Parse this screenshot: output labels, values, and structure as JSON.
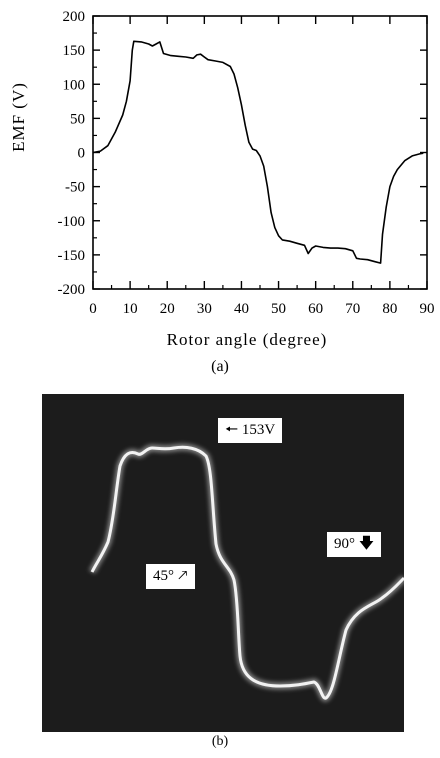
{
  "chart_data": [
    {
      "type": "line",
      "caption": "(a)",
      "xlabel": "Rotor angle (degree)",
      "ylabel": "EMF (V)",
      "xlim": [
        0,
        90
      ],
      "ylim": [
        -200,
        200
      ],
      "xticks": [
        0,
        10,
        20,
        30,
        40,
        50,
        60,
        70,
        80,
        90
      ],
      "yticks": [
        200,
        150,
        100,
        50,
        0,
        -50,
        -100,
        -150,
        -200
      ],
      "grid": false,
      "legend": "none",
      "series": [
        {
          "color": "#000000",
          "x": [
            0,
            2,
            4,
            6,
            8,
            9,
            10,
            10.6,
            11,
            13,
            15,
            16,
            17,
            18,
            19,
            21,
            23,
            25,
            27,
            28,
            29,
            30,
            31,
            33,
            35,
            37,
            38,
            39,
            40,
            41,
            42,
            43,
            44,
            45,
            46,
            47,
            48,
            49,
            50,
            51,
            53,
            55,
            57,
            58,
            59,
            60,
            62,
            64,
            66,
            68,
            70,
            71,
            72,
            74,
            76,
            77.5,
            78,
            79,
            80,
            81,
            82,
            84,
            86,
            88,
            89
          ],
          "y": [
            0,
            2,
            10,
            30,
            55,
            75,
            105,
            150,
            163,
            162,
            159,
            156,
            159,
            162,
            145,
            142,
            141,
            140,
            138,
            143,
            144,
            140,
            136,
            134,
            132,
            126,
            115,
            95,
            70,
            40,
            15,
            5,
            3,
            -5,
            -20,
            -50,
            -88,
            -110,
            -122,
            -128,
            -130,
            -133,
            -136,
            -148,
            -140,
            -137,
            -139,
            -140,
            -140,
            -141,
            -144,
            -155,
            -156,
            -157,
            -160,
            -162,
            -120,
            -80,
            -50,
            -35,
            -25,
            -12,
            -5,
            -2,
            -1
          ]
        }
      ]
    },
    {
      "type": "line",
      "caption": "(b)",
      "annotations": [
        "153V",
        "45°",
        "90°"
      ]
    }
  ]
}
